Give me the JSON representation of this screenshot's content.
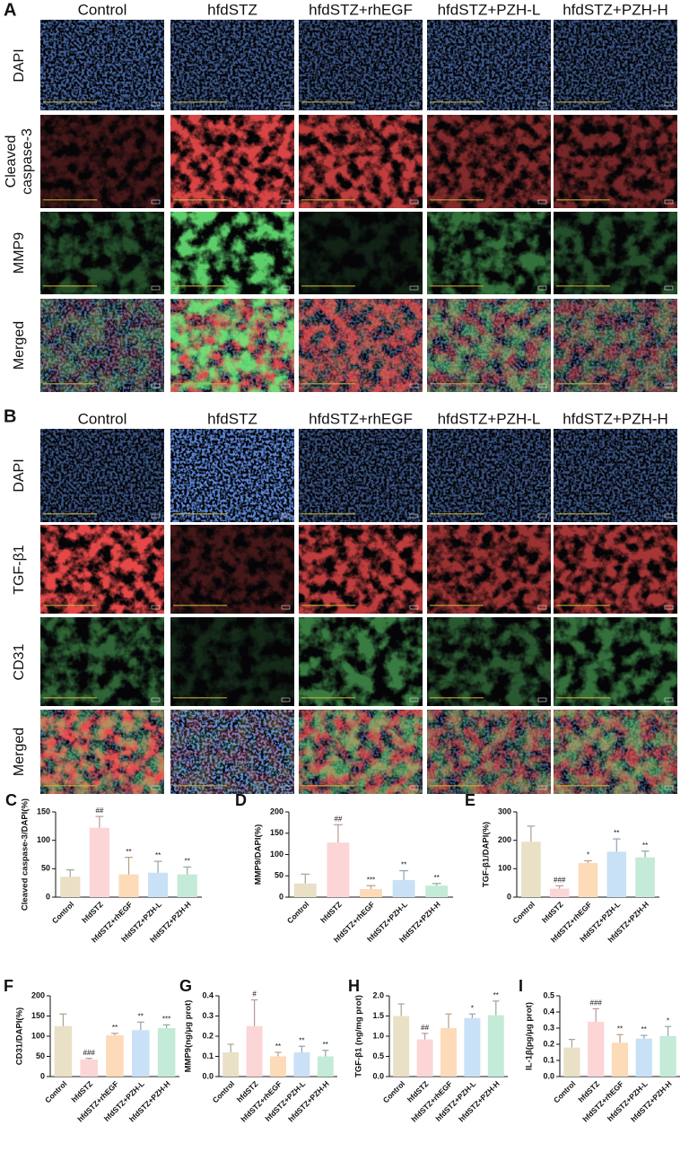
{
  "panels": [
    {
      "label": "A",
      "columns": [
        "Control",
        "hfdSTZ",
        "hfdSTZ+rhEGF",
        "hfdSTZ+PZH-L",
        "hfdSTZ+PZH-H"
      ],
      "rows": [
        "DAPI",
        "Cleaved caspase-3",
        "MMP9",
        "Merged"
      ]
    },
    {
      "label": "B",
      "columns": [
        "Control",
        "hfdSTZ",
        "hfdSTZ+rhEGF",
        "hfdSTZ+PZH-L",
        "hfdSTZ+PZH-H"
      ],
      "rows": [
        "DAPI",
        "TGF-β1",
        "CD31",
        "Merged"
      ]
    }
  ],
  "chart_data": [
    {
      "type": "bar",
      "panel": "C",
      "y_label": "Cleaved caspase-3/DAPI(%)",
      "categories": [
        "Control",
        "hfdSTZ",
        "hfdSTZ+rhEGF",
        "hfdSTZ+PZH-L",
        "hfdSTZ+PZH-H"
      ],
      "values": [
        36,
        122,
        40,
        43,
        40
      ],
      "errors": [
        12,
        20,
        30,
        20,
        13
      ],
      "annotations": [
        null,
        "##",
        "**",
        "**",
        "**"
      ],
      "colors": [
        "#e9e0c6",
        "#fcd5d6",
        "#fddab8",
        "#c9e1f6",
        "#c3ebd8"
      ],
      "ylim": [
        0,
        150
      ],
      "yticks": [
        0,
        50,
        100,
        150
      ]
    },
    {
      "type": "bar",
      "panel": "D",
      "y_label": "MMP9/DAPI(%)",
      "categories": [
        "Control",
        "hfdSTZ",
        "hfdSTZ+rhEGF",
        "hfdSTZ+PZH-L",
        "hfdSTZ+PZH-H"
      ],
      "values": [
        32,
        128,
        19,
        40,
        27
      ],
      "errors": [
        22,
        42,
        8,
        22,
        5
      ],
      "annotations": [
        null,
        "##",
        "***",
        "**",
        "**"
      ],
      "colors": [
        "#e9e0c6",
        "#fcd5d6",
        "#fddab8",
        "#c9e1f6",
        "#c3ebd8"
      ],
      "ylim": [
        0,
        200
      ],
      "yticks": [
        0,
        50,
        100,
        150,
        200
      ]
    },
    {
      "type": "bar",
      "panel": "E",
      "y_label": "TGF-β1/DAPI(%)",
      "categories": [
        "Control",
        "hfdSTZ",
        "hfdSTZ+rhEGF",
        "hfdSTZ+PZH-L",
        "hfdSTZ+PZH-H"
      ],
      "values": [
        195,
        30,
        120,
        160,
        140
      ],
      "errors": [
        55,
        10,
        8,
        45,
        22
      ],
      "annotations": [
        null,
        "###",
        "*",
        "**",
        "**"
      ],
      "colors": [
        "#e9e0c6",
        "#fcd5d6",
        "#fddab8",
        "#c9e1f6",
        "#c3ebd8"
      ],
      "ylim": [
        0,
        300
      ],
      "yticks": [
        0,
        100,
        200,
        300
      ]
    },
    {
      "type": "bar",
      "panel": "F",
      "y_label": "CD31/DAPI(%)",
      "categories": [
        "Control",
        "hfdSTZ",
        "hfdSTZ+rhEGF",
        "hfdSTZ+PZH-L",
        "hfdSTZ+PZH-H"
      ],
      "values": [
        125,
        42,
        102,
        115,
        120
      ],
      "errors": [
        30,
        3,
        5,
        20,
        8
      ],
      "annotations": [
        null,
        "###",
        "**",
        "**",
        "***"
      ],
      "colors": [
        "#e9e0c6",
        "#fcd5d6",
        "#fddab8",
        "#c9e1f6",
        "#c3ebd8"
      ],
      "ylim": [
        0,
        200
      ],
      "yticks": [
        0,
        50,
        100,
        150,
        200
      ]
    },
    {
      "type": "bar",
      "panel": "G",
      "y_label": "MMP9(ng/μg prot)",
      "categories": [
        "Control",
        "hfdSTZ",
        "hfdSTZ+rhEGF",
        "hfdSTZ+PZH-L",
        "hfdSTZ+PZH-H"
      ],
      "values": [
        0.12,
        0.25,
        0.1,
        0.12,
        0.1
      ],
      "errors": [
        0.04,
        0.13,
        0.02,
        0.03,
        0.03
      ],
      "annotations": [
        null,
        "#",
        "**",
        "**",
        "**"
      ],
      "colors": [
        "#e9e0c6",
        "#fcd5d6",
        "#fddab8",
        "#c9e1f6",
        "#c3ebd8"
      ],
      "ylim": [
        0,
        0.4
      ],
      "yticks": [
        {
          "value": 0,
          "label": "0.0"
        },
        0.1,
        0.2,
        0.3,
        0.4
      ]
    },
    {
      "type": "bar",
      "panel": "H",
      "y_label": "TGF-β1 (ng/mg prot)",
      "categories": [
        "Control",
        "hfdSTZ",
        "hfdSTZ+rhEGF",
        "hfdSTZ+PZH-L",
        "hfdSTZ+PZH-H"
      ],
      "values": [
        1.5,
        0.92,
        1.2,
        1.45,
        1.52
      ],
      "errors": [
        0.3,
        0.15,
        0.35,
        0.1,
        0.35
      ],
      "annotations": [
        null,
        "##",
        null,
        "*",
        "**"
      ],
      "colors": [
        "#e9e0c6",
        "#fcd5d6",
        "#fddab8",
        "#c9e1f6",
        "#c3ebd8"
      ],
      "ylim": [
        0,
        2
      ],
      "yticks": [
        {
          "value": 0,
          "label": "0.0"
        },
        0.5,
        {
          "value": 1,
          "label": "1.0"
        },
        1.5,
        {
          "value": 2,
          "label": "2.0"
        }
      ]
    },
    {
      "type": "bar",
      "panel": "I",
      "y_label": "IL-1β(pg/μg prot)",
      "categories": [
        "Control",
        "hfdSTZ",
        "hfdSTZ+rhEGF",
        "hfdSTZ+PZH-L",
        "hfdSTZ+PZH-H"
      ],
      "values": [
        0.18,
        0.34,
        0.21,
        0.235,
        0.25
      ],
      "errors": [
        0.05,
        0.08,
        0.05,
        0.02,
        0.06
      ],
      "annotations": [
        null,
        "###",
        "**",
        "**",
        "*"
      ],
      "colors": [
        "#e9e0c6",
        "#fcd5d6",
        "#fddab8",
        "#c9e1f6",
        "#c3ebd8"
      ],
      "ylim": [
        0,
        0.5
      ],
      "yticks": [
        {
          "value": 0,
          "label": "0.0"
        },
        0.1,
        0.2,
        0.3,
        0.4,
        0.5
      ]
    }
  ]
}
